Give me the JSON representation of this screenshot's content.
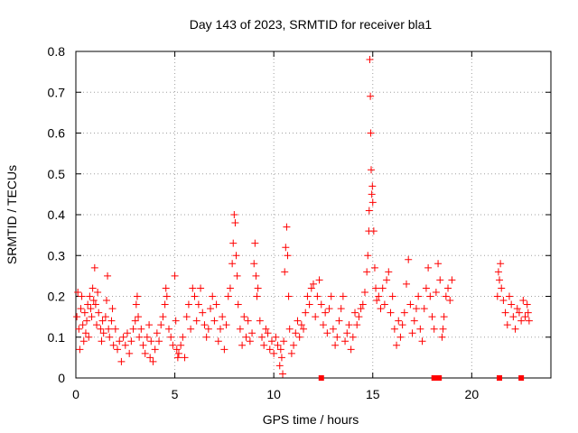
{
  "chart_data": {
    "type": "scatter",
    "title": "Day 143 of 2023, SRMTID for receiver bla1",
    "xlabel": "GPS time / hours",
    "ylabel": "SRMTID / TECUs",
    "xlim": [
      0,
      24
    ],
    "ylim": [
      0,
      0.8
    ],
    "xticks": [
      0,
      5,
      10,
      15,
      20
    ],
    "xtick_labels": [
      "0",
      "5",
      "10",
      "15",
      "20"
    ],
    "yticks": [
      0,
      0.1,
      0.2,
      0.3,
      0.4,
      0.5,
      0.6,
      0.7,
      0.8
    ],
    "ytick_labels": [
      "0",
      "0.1",
      "0.2",
      "0.3",
      "0.4",
      "0.5",
      "0.6",
      "0.7",
      "0.8"
    ],
    "grid": true,
    "marker": "plus",
    "color": "#ff0000",
    "series": [
      {
        "name": "SRMTID",
        "points": [
          [
            0.05,
            0.15
          ],
          [
            0.1,
            0.21
          ],
          [
            0.15,
            0.12
          ],
          [
            0.2,
            0.07
          ],
          [
            0.25,
            0.17
          ],
          [
            0.3,
            0.2
          ],
          [
            0.35,
            0.13
          ],
          [
            0.4,
            0.09
          ],
          [
            0.45,
            0.16
          ],
          [
            0.5,
            0.11
          ],
          [
            0.55,
            0.14
          ],
          [
            0.6,
            0.18
          ],
          [
            0.65,
            0.1
          ],
          [
            0.7,
            0.2
          ],
          [
            0.75,
            0.17
          ],
          [
            0.8,
            0.15
          ],
          [
            0.85,
            0.22
          ],
          [
            0.9,
            0.19
          ],
          [
            0.95,
            0.27
          ],
          [
            1.0,
            0.18
          ],
          [
            1.05,
            0.13
          ],
          [
            1.1,
            0.21
          ],
          [
            1.15,
            0.16
          ],
          [
            1.25,
            0.12
          ],
          [
            1.3,
            0.09
          ],
          [
            1.35,
            0.14
          ],
          [
            1.4,
            0.11
          ],
          [
            1.5,
            0.15
          ],
          [
            1.55,
            0.19
          ],
          [
            1.6,
            0.25
          ],
          [
            1.65,
            0.12
          ],
          [
            1.7,
            0.1
          ],
          [
            1.8,
            0.14
          ],
          [
            1.85,
            0.17
          ],
          [
            1.9,
            0.08
          ],
          [
            2.0,
            0.12
          ],
          [
            2.1,
            0.07
          ],
          [
            2.2,
            0.09
          ],
          [
            2.3,
            0.04
          ],
          [
            2.4,
            0.1
          ],
          [
            2.5,
            0.08
          ],
          [
            2.6,
            0.11
          ],
          [
            2.7,
            0.06
          ],
          [
            2.8,
            0.09
          ],
          [
            2.9,
            0.12
          ],
          [
            3.0,
            0.14
          ],
          [
            3.05,
            0.18
          ],
          [
            3.1,
            0.2
          ],
          [
            3.15,
            0.15
          ],
          [
            3.2,
            0.1
          ],
          [
            3.3,
            0.12
          ],
          [
            3.4,
            0.08
          ],
          [
            3.5,
            0.06
          ],
          [
            3.6,
            0.1
          ],
          [
            3.7,
            0.13
          ],
          [
            3.75,
            0.05
          ],
          [
            3.8,
            0.09
          ],
          [
            3.9,
            0.04
          ],
          [
            4.0,
            0.07
          ],
          [
            4.1,
            0.11
          ],
          [
            4.2,
            0.09
          ],
          [
            4.3,
            0.13
          ],
          [
            4.4,
            0.15
          ],
          [
            4.5,
            0.18
          ],
          [
            4.55,
            0.22
          ],
          [
            4.6,
            0.2
          ],
          [
            4.7,
            0.12
          ],
          [
            4.8,
            0.1
          ],
          [
            4.9,
            0.08
          ],
          [
            5.0,
            0.25
          ],
          [
            5.05,
            0.14
          ],
          [
            5.1,
            0.07
          ],
          [
            5.15,
            0.05
          ],
          [
            5.2,
            0.06
          ],
          [
            5.3,
            0.08
          ],
          [
            5.4,
            0.1
          ],
          [
            5.5,
            0.05
          ],
          [
            5.6,
            0.15
          ],
          [
            5.7,
            0.18
          ],
          [
            5.8,
            0.12
          ],
          [
            5.9,
            0.22
          ],
          [
            6.0,
            0.2
          ],
          [
            6.1,
            0.14
          ],
          [
            6.2,
            0.18
          ],
          [
            6.3,
            0.22
          ],
          [
            6.4,
            0.16
          ],
          [
            6.5,
            0.13
          ],
          [
            6.6,
            0.1
          ],
          [
            6.7,
            0.12
          ],
          [
            6.8,
            0.17
          ],
          [
            6.9,
            0.2
          ],
          [
            7.0,
            0.14
          ],
          [
            7.1,
            0.18
          ],
          [
            7.2,
            0.09
          ],
          [
            7.3,
            0.12
          ],
          [
            7.4,
            0.15
          ],
          [
            7.5,
            0.07
          ],
          [
            7.6,
            0.13
          ],
          [
            7.7,
            0.2
          ],
          [
            7.8,
            0.22
          ],
          [
            7.9,
            0.28
          ],
          [
            7.95,
            0.33
          ],
          [
            8.0,
            0.4
          ],
          [
            8.05,
            0.38
          ],
          [
            8.1,
            0.3
          ],
          [
            8.15,
            0.25
          ],
          [
            8.2,
            0.18
          ],
          [
            8.3,
            0.12
          ],
          [
            8.4,
            0.08
          ],
          [
            8.5,
            0.15
          ],
          [
            8.6,
            0.1
          ],
          [
            8.7,
            0.14
          ],
          [
            8.8,
            0.09
          ],
          [
            8.9,
            0.11
          ],
          [
            9.0,
            0.28
          ],
          [
            9.05,
            0.33
          ],
          [
            9.1,
            0.25
          ],
          [
            9.15,
            0.2
          ],
          [
            9.2,
            0.22
          ],
          [
            9.3,
            0.14
          ],
          [
            9.4,
            0.1
          ],
          [
            9.5,
            0.08
          ],
          [
            9.6,
            0.12
          ],
          [
            9.7,
            0.11
          ],
          [
            9.8,
            0.07
          ],
          [
            9.9,
            0.09
          ],
          [
            10.0,
            0.06
          ],
          [
            10.1,
            0.1
          ],
          [
            10.2,
            0.08
          ],
          [
            10.3,
            0.03
          ],
          [
            10.35,
            0.07
          ],
          [
            10.4,
            0.05
          ],
          [
            10.45,
            0.01
          ],
          [
            10.5,
            0.09
          ],
          [
            10.55,
            0.26
          ],
          [
            10.6,
            0.32
          ],
          [
            10.65,
            0.37
          ],
          [
            10.7,
            0.3
          ],
          [
            10.75,
            0.2
          ],
          [
            10.8,
            0.12
          ],
          [
            10.9,
            0.06
          ],
          [
            11.0,
            0.08
          ],
          [
            11.1,
            0.11
          ],
          [
            11.2,
            0.14
          ],
          [
            11.3,
            0.1
          ],
          [
            11.4,
            0.13
          ],
          [
            11.5,
            0.12
          ],
          [
            11.6,
            0.16
          ],
          [
            11.7,
            0.2
          ],
          [
            11.8,
            0.18
          ],
          [
            11.9,
            0.22
          ],
          [
            12.0,
            0.23
          ],
          [
            12.1,
            0.15
          ],
          [
            12.2,
            0.2
          ],
          [
            12.3,
            0.24
          ],
          [
            12.4,
            0.18
          ],
          [
            12.5,
            0.13
          ],
          [
            12.6,
            0.16
          ],
          [
            12.7,
            0.11
          ],
          [
            12.8,
            0.17
          ],
          [
            12.9,
            0.2
          ],
          [
            13.0,
            0.12
          ],
          [
            13.1,
            0.08
          ],
          [
            13.2,
            0.1
          ],
          [
            13.3,
            0.14
          ],
          [
            13.4,
            0.17
          ],
          [
            13.5,
            0.2
          ],
          [
            13.6,
            0.09
          ],
          [
            13.7,
            0.11
          ],
          [
            13.8,
            0.13
          ],
          [
            13.9,
            0.07
          ],
          [
            14.0,
            0.1
          ],
          [
            14.1,
            0.16
          ],
          [
            14.2,
            0.13
          ],
          [
            14.3,
            0.15
          ],
          [
            14.4,
            0.17
          ],
          [
            14.5,
            0.18
          ],
          [
            14.6,
            0.21
          ],
          [
            14.7,
            0.26
          ],
          [
            14.75,
            0.3
          ],
          [
            14.8,
            0.36
          ],
          [
            14.82,
            0.41
          ],
          [
            14.85,
            0.78
          ],
          [
            14.88,
            0.69
          ],
          [
            14.9,
            0.6
          ],
          [
            14.92,
            0.51
          ],
          [
            14.95,
            0.45
          ],
          [
            14.98,
            0.47
          ],
          [
            15.0,
            0.43
          ],
          [
            15.05,
            0.36
          ],
          [
            15.1,
            0.27
          ],
          [
            15.15,
            0.22
          ],
          [
            15.2,
            0.19
          ],
          [
            15.3,
            0.2
          ],
          [
            15.4,
            0.17
          ],
          [
            15.5,
            0.22
          ],
          [
            15.6,
            0.18
          ],
          [
            15.7,
            0.24
          ],
          [
            15.8,
            0.26
          ],
          [
            15.9,
            0.16
          ],
          [
            16.0,
            0.2
          ],
          [
            16.1,
            0.12
          ],
          [
            16.2,
            0.08
          ],
          [
            16.3,
            0.14
          ],
          [
            16.4,
            0.1
          ],
          [
            16.5,
            0.13
          ],
          [
            16.6,
            0.16
          ],
          [
            16.7,
            0.23
          ],
          [
            16.8,
            0.29
          ],
          [
            16.9,
            0.18
          ],
          [
            17.0,
            0.11
          ],
          [
            17.1,
            0.14
          ],
          [
            17.2,
            0.17
          ],
          [
            17.3,
            0.2
          ],
          [
            17.4,
            0.12
          ],
          [
            17.5,
            0.09
          ],
          [
            17.6,
            0.17
          ],
          [
            17.7,
            0.22
          ],
          [
            17.8,
            0.27
          ],
          [
            17.9,
            0.2
          ],
          [
            18.0,
            0.15
          ],
          [
            18.1,
            0.12
          ],
          [
            18.2,
            0.21
          ],
          [
            18.3,
            0.28
          ],
          [
            18.4,
            0.24
          ],
          [
            18.5,
            0.1
          ],
          [
            18.55,
            0.12
          ],
          [
            18.6,
            0.15
          ],
          [
            18.7,
            0.2
          ],
          [
            18.8,
            0.22
          ],
          [
            18.9,
            0.19
          ],
          [
            19.0,
            0.24
          ],
          [
            21.3,
            0.2
          ],
          [
            21.35,
            0.26
          ],
          [
            21.4,
            0.24
          ],
          [
            21.45,
            0.28
          ],
          [
            21.5,
            0.22
          ],
          [
            21.6,
            0.19
          ],
          [
            21.7,
            0.16
          ],
          [
            21.8,
            0.13
          ],
          [
            21.9,
            0.2
          ],
          [
            22.0,
            0.18
          ],
          [
            22.1,
            0.15
          ],
          [
            22.2,
            0.12
          ],
          [
            22.3,
            0.17
          ],
          [
            22.4,
            0.16
          ],
          [
            22.5,
            0.14
          ],
          [
            22.6,
            0.19
          ],
          [
            22.7,
            0.15
          ],
          [
            22.8,
            0.18
          ],
          [
            22.85,
            0.16
          ],
          [
            22.9,
            0.14
          ]
        ]
      },
      {
        "name": "zero-markers",
        "marker": "square",
        "points": [
          [
            12.4,
            0
          ],
          [
            18.1,
            0
          ],
          [
            18.35,
            0
          ],
          [
            21.4,
            0
          ],
          [
            22.5,
            0
          ]
        ]
      }
    ]
  }
}
